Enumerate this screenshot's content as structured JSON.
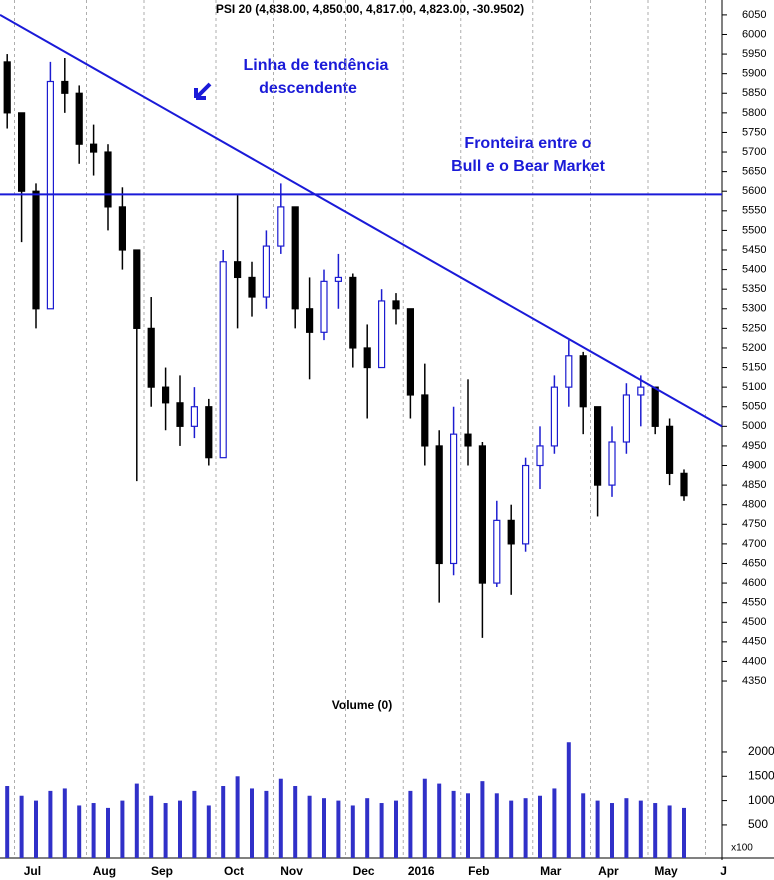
{
  "chart_data": [
    {
      "type": "candlestick",
      "title": "PSI 20 (4,838.00, 4,850.00, 4,817.00, 4,823.00, -30.9502)",
      "categories": [
        null,
        "Jul",
        null,
        null,
        null,
        null,
        "Aug",
        null,
        null,
        null,
        "Sep",
        null,
        null,
        null,
        null,
        "Oct",
        null,
        null,
        null,
        "Nov",
        null,
        null,
        null,
        null,
        "Dec",
        null,
        null,
        null,
        "2016",
        null,
        null,
        null,
        "Feb",
        null,
        null,
        null,
        null,
        "Mar",
        null,
        null,
        null,
        "Apr",
        null,
        null,
        null,
        "May",
        null,
        null,
        null,
        "J"
      ],
      "open": [
        5930,
        5800,
        5600,
        5300,
        5880,
        5850,
        5720,
        5700,
        5560,
        5450,
        5250,
        5100,
        5060,
        5000,
        5050,
        4920,
        5420,
        5380,
        5330,
        5460,
        5560,
        5300,
        5240,
        5370,
        5380,
        5200,
        5150,
        5320,
        5300,
        5080,
        4950,
        4650,
        4980,
        4950,
        4600,
        4760,
        4700,
        4900,
        4950,
        5100,
        5180,
        5050,
        4850,
        4960,
        5080,
        5100,
        5000,
        4880,
        null,
        null
      ],
      "high": [
        5950,
        5800,
        5620,
        5930,
        5940,
        5870,
        5770,
        5720,
        5610,
        5450,
        5330,
        5150,
        5130,
        5100,
        5070,
        5450,
        5590,
        5420,
        5500,
        5620,
        5560,
        5380,
        5400,
        5440,
        5390,
        5260,
        5350,
        5340,
        5300,
        5160,
        4990,
        5050,
        5120,
        4960,
        4810,
        4800,
        4920,
        5000,
        5130,
        5220,
        5190,
        5050,
        5000,
        5110,
        5130,
        5100,
        5020,
        4890,
        null,
        null
      ],
      "low": [
        5760,
        5470,
        5250,
        5300,
        5800,
        5670,
        5640,
        5500,
        5400,
        4860,
        5050,
        4990,
        4950,
        4970,
        4900,
        4920,
        5250,
        5280,
        5300,
        5440,
        5250,
        5120,
        5220,
        5300,
        5150,
        5020,
        5150,
        5260,
        5020,
        4900,
        4550,
        4620,
        4900,
        4460,
        4590,
        4570,
        4680,
        4840,
        4930,
        5050,
        4980,
        4770,
        4820,
        4930,
        5000,
        4980,
        4850,
        4810,
        null,
        null
      ],
      "close": [
        5800,
        5600,
        5300,
        5880,
        5850,
        5720,
        5700,
        5560,
        5450,
        5250,
        5100,
        5060,
        5000,
        5050,
        4920,
        5420,
        5380,
        5330,
        5460,
        5560,
        5300,
        5240,
        5370,
        5380,
        5200,
        5150,
        5320,
        5300,
        5080,
        4950,
        4650,
        4980,
        4950,
        4600,
        4760,
        4700,
        4900,
        4950,
        5100,
        5180,
        5050,
        4850,
        4960,
        5080,
        5100,
        5000,
        4880,
        4823,
        null,
        null
      ],
      "ylim": [
        4322,
        6088
      ],
      "yticks": [
        4350,
        4400,
        4450,
        4500,
        4550,
        4600,
        4650,
        4700,
        4750,
        4800,
        4850,
        4900,
        4950,
        5000,
        5050,
        5100,
        5150,
        5200,
        5250,
        5300,
        5350,
        5400,
        5450,
        5500,
        5550,
        5600,
        5650,
        5700,
        5750,
        5800,
        5850,
        5900,
        5950,
        6000,
        6050
      ],
      "color": "#1c1cd0",
      "trendlines": [
        {
          "start": 6050,
          "end": 5000
        },
        {
          "start": 5592,
          "end": 5592
        }
      ],
      "annotations": [
        "Linha de tendência",
        "descendente",
        "Fronteira entre o",
        "Bull e o Bear Market"
      ]
    },
    {
      "type": "bar",
      "title": "Volume (0)",
      "values": [
        1300,
        1100,
        1000,
        1200,
        1250,
        900,
        950,
        850,
        1000,
        1350,
        1100,
        950,
        1000,
        1200,
        900,
        1300,
        1500,
        1250,
        1200,
        1450,
        1300,
        1100,
        1050,
        1000,
        900,
        1050,
        950,
        1000,
        1200,
        1450,
        1350,
        1200,
        1150,
        1400,
        1150,
        1000,
        1050,
        1100,
        1250,
        2200,
        1150,
        1000,
        950,
        1050,
        1000,
        950,
        900,
        850,
        null,
        null
      ],
      "ylim": [
        -180,
        2760
      ],
      "yticks": [
        500,
        1000,
        1500,
        2000
      ],
      "unit_label": "x100",
      "color": "#3030c8"
    }
  ]
}
